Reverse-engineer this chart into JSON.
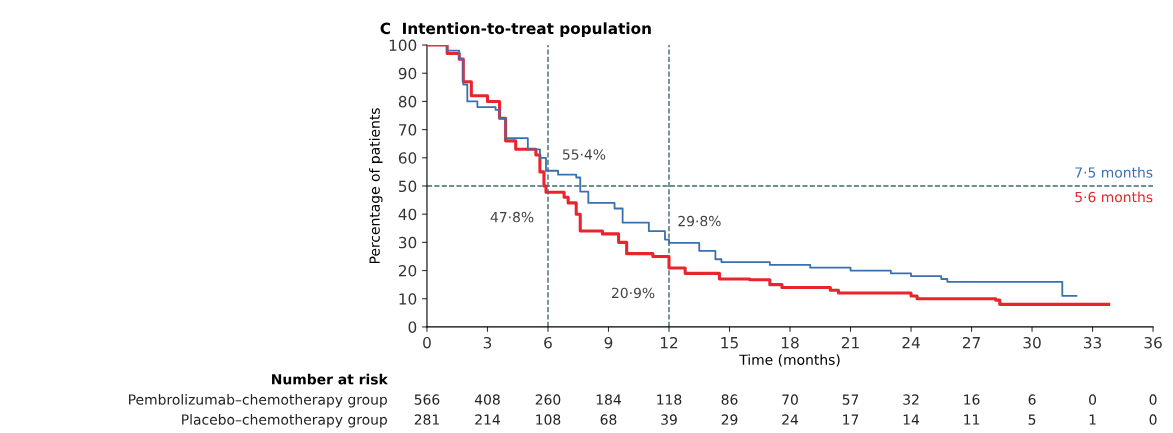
{
  "chart_data": {
    "type": "step",
    "title": "C  Intention-to-treat population",
    "xlabel": "Time (months)",
    "ylabel": "Percentage of patients",
    "xlim": [
      0,
      36
    ],
    "xticks": [
      0,
      3,
      6,
      9,
      12,
      15,
      18,
      21,
      24,
      27,
      30,
      33,
      36
    ],
    "ylim": [
      0,
      100
    ],
    "yticks": [
      0,
      10,
      20,
      30,
      40,
      50,
      60,
      70,
      80,
      90,
      100
    ],
    "grid": false,
    "line_style": "solid",
    "series": [
      {
        "color": "#3a6fb0",
        "x": [
          0,
          1,
          1.6,
          1.8,
          2,
          2.5,
          3.4,
          3.6,
          3.9,
          5,
          5.6,
          5.9,
          6.5,
          7.4,
          7.6,
          8,
          9.3,
          9.7,
          11,
          11.8,
          12,
          13.5,
          14.3,
          14.6,
          17,
          19,
          21,
          23,
          24,
          25.5,
          25.8,
          31.4,
          31.5,
          32.2
        ],
        "values": [
          100,
          98,
          95,
          86,
          80,
          78,
          77,
          74,
          67,
          63,
          60,
          55.4,
          54,
          53,
          48,
          44,
          42,
          37,
          34,
          31,
          29.8,
          27,
          24,
          23,
          22,
          21,
          20,
          19,
          18,
          17,
          16,
          16,
          11,
          11
        ]
      },
      {
        "color": "#e8242c",
        "x": [
          0,
          1,
          1.6,
          1.8,
          2.2,
          3,
          3.6,
          3.9,
          4.4,
          5.4,
          5.6,
          5.8,
          5.9,
          6.8,
          7,
          7.4,
          7.6,
          8.7,
          9.5,
          9.9,
          11.2,
          12,
          12.8,
          14.5,
          16,
          17,
          17.6,
          20,
          20.4,
          24,
          24.3,
          28.2,
          28.4,
          33.8
        ],
        "values": [
          100,
          97,
          95,
          87,
          82,
          80,
          74,
          66,
          63,
          61,
          55,
          50,
          47.8,
          46,
          44,
          40,
          34,
          33,
          30,
          26,
          25,
          20.9,
          19,
          17,
          16.7,
          15,
          14,
          13,
          12,
          11,
          10,
          9.5,
          8,
          8
        ]
      }
    ],
    "ref_lines": [
      {
        "axis": "x",
        "value": 6,
        "color": "#3d6b6b",
        "line_style": "dashed"
      },
      {
        "axis": "x",
        "value": 12,
        "color": "#3d6b6b",
        "line_style": "dashed"
      },
      {
        "axis": "y",
        "value": 50,
        "color": "#3d6b6b",
        "line_style": "dashed"
      }
    ],
    "annotations": [
      {
        "text": "55·4%",
        "x": 6,
        "y": 55.4
      },
      {
        "text": "47·8%",
        "x": 6,
        "y": 47.8
      },
      {
        "text": "29·8%",
        "x": 12,
        "y": 29.8
      },
      {
        "text": "20·9%",
        "x": 12,
        "y": 20.9
      },
      {
        "text": "7·5 months",
        "x": 36,
        "y": 50
      },
      {
        "text": "5·6 months",
        "x": 36,
        "y": 50
      },
      "Number at risk",
      "Pembrolizumab–chemotherapy group",
      "566",
      "408",
      "260",
      "184",
      "118",
      "86",
      "70",
      "57",
      "32",
      "16",
      "6",
      "0",
      "0",
      "Placebo–chemotherapy group",
      "281",
      "214",
      "108",
      "68",
      "39",
      "29",
      "24",
      "17",
      "14",
      "11",
      "5",
      "1",
      "0"
    ]
  }
}
